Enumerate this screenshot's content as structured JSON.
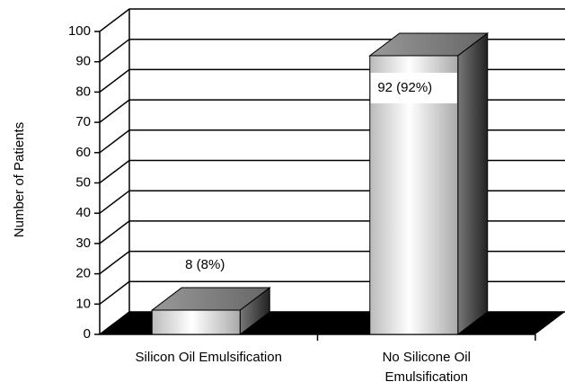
{
  "chart_data": {
    "type": "bar3d",
    "y_label": "Number of Patients",
    "categories": [
      "Silicon Oil Emulsification",
      "No Silicone Oil Emulsification"
    ],
    "values": [
      8,
      92
    ],
    "value_labels": [
      "8 (8%)",
      "92 (92%)"
    ],
    "ylim": [
      0,
      100
    ],
    "yticks": [
      0,
      10,
      20,
      30,
      40,
      50,
      60,
      70,
      80,
      90,
      100
    ],
    "grid": true
  }
}
